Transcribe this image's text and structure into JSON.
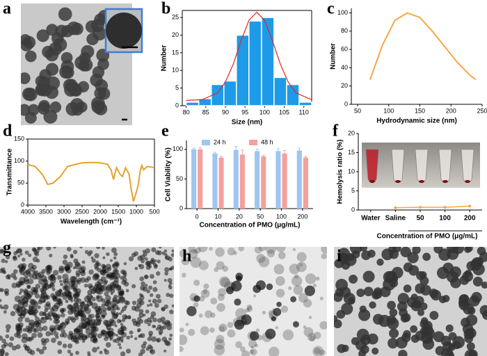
{
  "panel_labels": [
    "a",
    "b",
    "c",
    "d",
    "e",
    "f",
    "g",
    "h",
    "i"
  ],
  "chart_data": [
    {
      "type": "histogram",
      "xlabel": "Size (nm)",
      "ylabel": "Number",
      "color": "#1e9be8",
      "bins": [
        80,
        83.2,
        86.4,
        89.6,
        92.8,
        96,
        99.2,
        102.4,
        105.6,
        108.8,
        112
      ],
      "values": [
        1,
        2,
        6,
        7,
        20,
        24,
        25,
        8,
        6,
        1
      ],
      "fit": {
        "color": "#e8231e",
        "x": [
          80,
          84,
          88,
          90,
          92,
          94,
          96,
          98,
          100,
          102,
          104,
          106,
          108,
          112
        ],
        "values": [
          1.5,
          1.7,
          3.6,
          6.7,
          11.8,
          18.4,
          24.2,
          26.5,
          24.2,
          18.4,
          11.8,
          6.7,
          3.6,
          1.7
        ]
      },
      "xlim": [
        79,
        112
      ],
      "xticks": [
        80,
        85,
        90,
        95,
        100,
        105,
        110
      ],
      "ylim": [
        0,
        27
      ],
      "yticks": [
        0,
        5,
        10,
        15,
        20,
        25
      ]
    },
    {
      "type": "line",
      "xlabel": "Hydrodynamic size (nm)",
      "ylabel": "Number",
      "color": "#f5a742",
      "x": [
        70,
        90,
        110,
        130,
        150,
        170,
        190,
        210,
        230,
        240
      ],
      "values": [
        27,
        65,
        92,
        100,
        95,
        80,
        63,
        46,
        32,
        27
      ],
      "xlim": [
        40,
        250
      ],
      "xticks": [
        50,
        100,
        150,
        200,
        250
      ],
      "ylim": [
        0,
        105
      ],
      "yticks": [
        0,
        20,
        40,
        60,
        80,
        100
      ]
    },
    {
      "type": "line",
      "xlabel": "Wavelength (cm⁻¹)",
      "ylabel": "Transmittance",
      "color": "#e3a32b",
      "x": [
        4000,
        3800,
        3600,
        3450,
        3300,
        3100,
        2900,
        2700,
        2500,
        2200,
        2000,
        1800,
        1700,
        1630,
        1550,
        1450,
        1380,
        1300,
        1200,
        1150,
        1080,
        1000,
        950,
        900,
        850,
        800,
        700,
        500
      ],
      "values": [
        92,
        88,
        70,
        47,
        50,
        65,
        88,
        92,
        96,
        97,
        96,
        93,
        80,
        58,
        85,
        70,
        65,
        85,
        70,
        40,
        8,
        30,
        45,
        75,
        90,
        80,
        88,
        85
      ],
      "xlim": [
        4000,
        500
      ],
      "xticks": [
        4000,
        3500,
        3000,
        2500,
        2000,
        1500,
        1000,
        500
      ],
      "ylim": [
        0,
        150
      ],
      "yticks": [
        0,
        50,
        100,
        150
      ]
    },
    {
      "type": "bar",
      "xlabel": "Concentration of PMO (μg/mL)",
      "ylabel": "Cell Viability (%)",
      "categories": [
        "0",
        "10",
        "20",
        "50",
        "100",
        "200"
      ],
      "series": [
        {
          "name": "24 h",
          "color": "#9fc5f0",
          "values": [
            100,
            93,
            99,
            97,
            97,
            98
          ],
          "errors": [
            2,
            2,
            6,
            3,
            4,
            4
          ]
        },
        {
          "name": "48 h",
          "color": "#f4a09c",
          "values": [
            100,
            86,
            91,
            88,
            93,
            86
          ],
          "errors": [
            3,
            2,
            8,
            2,
            5,
            2
          ]
        }
      ],
      "ylim": [
        0,
        115
      ],
      "yticks": [
        0,
        50,
        100
      ]
    },
    {
      "type": "line",
      "xlabel": "Concentration of PMO (μg/mL)",
      "ylabel": "Hemolysis ratio (%)",
      "color": "#f5a742",
      "categories": [
        "Water",
        "Saline",
        "50",
        "100",
        "200"
      ],
      "values": [
        null,
        0.6,
        0.7,
        0.7,
        1.0
      ],
      "ylim": [
        0,
        20
      ],
      "yticks": [
        0,
        5,
        10,
        15,
        20
      ]
    }
  ]
}
